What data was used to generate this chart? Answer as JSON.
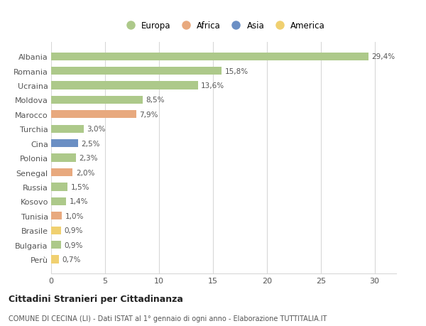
{
  "countries": [
    "Albania",
    "Romania",
    "Ucraina",
    "Moldova",
    "Marocco",
    "Turchia",
    "Cina",
    "Polonia",
    "Senegal",
    "Russia",
    "Kosovo",
    "Tunisia",
    "Brasile",
    "Bulgaria",
    "Perù"
  ],
  "values": [
    29.4,
    15.8,
    13.6,
    8.5,
    7.9,
    3.0,
    2.5,
    2.3,
    2.0,
    1.5,
    1.4,
    1.0,
    0.9,
    0.9,
    0.7
  ],
  "labels": [
    "29,4%",
    "15,8%",
    "13,6%",
    "8,5%",
    "7,9%",
    "3,0%",
    "2,5%",
    "2,3%",
    "2,0%",
    "1,5%",
    "1,4%",
    "1,0%",
    "0,9%",
    "0,9%",
    "0,7%"
  ],
  "continents": [
    "Europa",
    "Europa",
    "Europa",
    "Europa",
    "Africa",
    "Europa",
    "Asia",
    "Europa",
    "Africa",
    "Europa",
    "Europa",
    "Africa",
    "America",
    "Europa",
    "America"
  ],
  "colors": {
    "Europa": "#adc98a",
    "Africa": "#e8a97e",
    "Asia": "#6b8fc4",
    "America": "#f0d070"
  },
  "legend_order": [
    "Europa",
    "Africa",
    "Asia",
    "America"
  ],
  "title": "Cittadini Stranieri per Cittadinanza",
  "subtitle": "COMUNE DI CECINA (LI) - Dati ISTAT al 1° gennaio di ogni anno - Elaborazione TUTTITALIA.IT",
  "xlim": [
    0,
    32
  ],
  "xticks": [
    0,
    5,
    10,
    15,
    20,
    25,
    30
  ],
  "bg_color": "#ffffff",
  "grid_color": "#d8d8d8"
}
